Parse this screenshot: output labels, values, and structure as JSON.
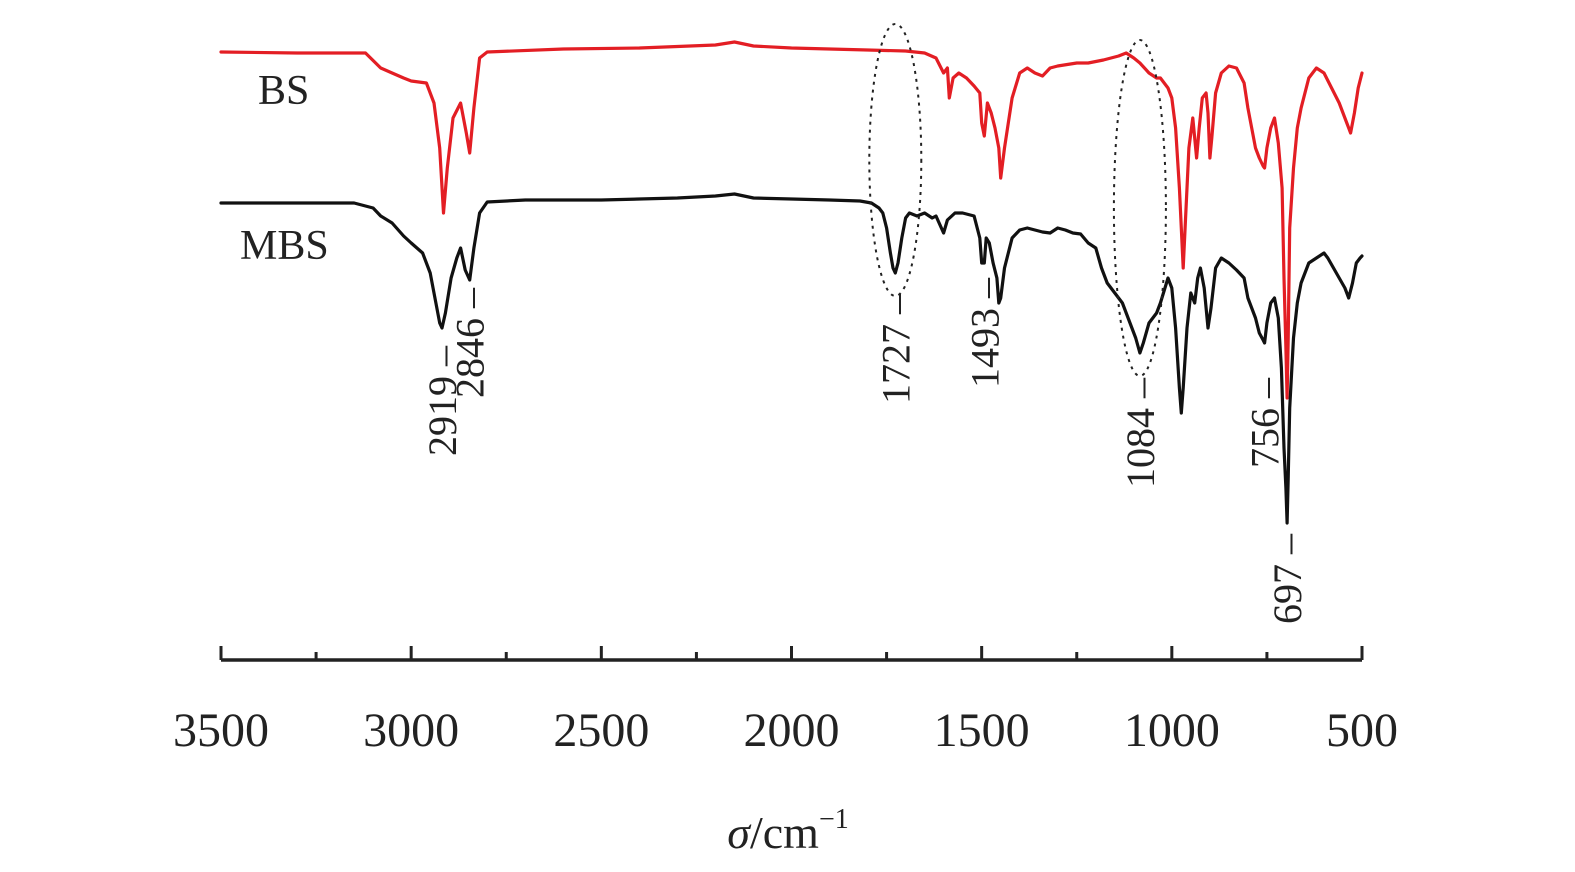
{
  "chart_data": {
    "type": "line",
    "title": "",
    "xlabel_symbol": "σ",
    "xlabel_unit": "/cm",
    "xlabel_exp": "−1",
    "xlim": [
      3500,
      500
    ],
    "x_reversed": true,
    "xticks": [
      3500,
      3000,
      2500,
      2000,
      1500,
      1000,
      500
    ],
    "grid": false,
    "legend": "none",
    "series": [
      {
        "name": "BS",
        "color": "#e31e24",
        "points": [
          [
            3500,
            4
          ],
          [
            3300,
            5
          ],
          [
            3120,
            5
          ],
          [
            3080,
            20
          ],
          [
            3050,
            25
          ],
          [
            3020,
            30
          ],
          [
            3000,
            33
          ],
          [
            2960,
            35
          ],
          [
            2940,
            55
          ],
          [
            2925,
            100
          ],
          [
            2915,
            165
          ],
          [
            2905,
            120
          ],
          [
            2890,
            70
          ],
          [
            2870,
            55
          ],
          [
            2855,
            85
          ],
          [
            2846,
            105
          ],
          [
            2835,
            60
          ],
          [
            2820,
            10
          ],
          [
            2800,
            4
          ],
          [
            2600,
            1
          ],
          [
            2400,
            0
          ],
          [
            2200,
            -3
          ],
          [
            2150,
            -6
          ],
          [
            2100,
            -2
          ],
          [
            2000,
            0
          ],
          [
            1900,
            1
          ],
          [
            1800,
            2
          ],
          [
            1700,
            3
          ],
          [
            1650,
            5
          ],
          [
            1620,
            10
          ],
          [
            1600,
            25
          ],
          [
            1590,
            20
          ],
          [
            1585,
            50
          ],
          [
            1575,
            30
          ],
          [
            1560,
            25
          ],
          [
            1540,
            30
          ],
          [
            1520,
            38
          ],
          [
            1505,
            45
          ],
          [
            1500,
            75
          ],
          [
            1493,
            88
          ],
          [
            1485,
            55
          ],
          [
            1475,
            65
          ],
          [
            1465,
            80
          ],
          [
            1455,
            100
          ],
          [
            1450,
            130
          ],
          [
            1440,
            100
          ],
          [
            1420,
            50
          ],
          [
            1400,
            25
          ],
          [
            1380,
            20
          ],
          [
            1360,
            25
          ],
          [
            1340,
            28
          ],
          [
            1320,
            20
          ],
          [
            1300,
            18
          ],
          [
            1250,
            15
          ],
          [
            1220,
            15
          ],
          [
            1180,
            12
          ],
          [
            1140,
            8
          ],
          [
            1120,
            5
          ],
          [
            1100,
            10
          ],
          [
            1084,
            15
          ],
          [
            1060,
            25
          ],
          [
            1040,
            30
          ],
          [
            1030,
            30
          ],
          [
            1010,
            40
          ],
          [
            1000,
            50
          ],
          [
            990,
            80
          ],
          [
            980,
            140
          ],
          [
            975,
            180
          ],
          [
            970,
            220
          ],
          [
            965,
            180
          ],
          [
            955,
            100
          ],
          [
            945,
            70
          ],
          [
            935,
            110
          ],
          [
            928,
            80
          ],
          [
            920,
            50
          ],
          [
            910,
            45
          ],
          [
            905,
            65
          ],
          [
            900,
            110
          ],
          [
            895,
            90
          ],
          [
            885,
            45
          ],
          [
            870,
            25
          ],
          [
            850,
            18
          ],
          [
            830,
            20
          ],
          [
            810,
            35
          ],
          [
            800,
            60
          ],
          [
            790,
            80
          ],
          [
            780,
            100
          ],
          [
            770,
            110
          ],
          [
            760,
            118
          ],
          [
            756,
            120
          ],
          [
            750,
            100
          ],
          [
            740,
            80
          ],
          [
            730,
            70
          ],
          [
            720,
            95
          ],
          [
            710,
            140
          ],
          [
            705,
            230
          ],
          [
            700,
            300
          ],
          [
            697,
            350
          ],
          [
            694,
            290
          ],
          [
            690,
            180
          ],
          [
            680,
            120
          ],
          [
            670,
            80
          ],
          [
            660,
            60
          ],
          [
            640,
            30
          ],
          [
            620,
            20
          ],
          [
            600,
            25
          ],
          [
            580,
            40
          ],
          [
            560,
            55
          ],
          [
            540,
            75
          ],
          [
            530,
            85
          ],
          [
            520,
            65
          ],
          [
            510,
            40
          ],
          [
            500,
            25
          ]
        ]
      },
      {
        "name": "MBS",
        "color": "#111111",
        "points": [
          [
            3500,
            -5
          ],
          [
            3300,
            -5
          ],
          [
            3150,
            -5
          ],
          [
            3100,
            0
          ],
          [
            3080,
            8
          ],
          [
            3050,
            15
          ],
          [
            3020,
            28
          ],
          [
            3000,
            35
          ],
          [
            2970,
            45
          ],
          [
            2950,
            65
          ],
          [
            2935,
            95
          ],
          [
            2925,
            115
          ],
          [
            2919,
            120
          ],
          [
            2910,
            105
          ],
          [
            2895,
            70
          ],
          [
            2880,
            50
          ],
          [
            2870,
            40
          ],
          [
            2858,
            62
          ],
          [
            2846,
            72
          ],
          [
            2835,
            40
          ],
          [
            2820,
            5
          ],
          [
            2800,
            -6
          ],
          [
            2700,
            -8
          ],
          [
            2500,
            -8
          ],
          [
            2400,
            -9
          ],
          [
            2300,
            -10
          ],
          [
            2200,
            -12
          ],
          [
            2150,
            -14
          ],
          [
            2100,
            -10
          ],
          [
            2000,
            -9
          ],
          [
            1900,
            -8
          ],
          [
            1820,
            -7
          ],
          [
            1790,
            -5
          ],
          [
            1770,
            0
          ],
          [
            1760,
            5
          ],
          [
            1750,
            20
          ],
          [
            1740,
            45
          ],
          [
            1733,
            60
          ],
          [
            1727,
            65
          ],
          [
            1720,
            55
          ],
          [
            1710,
            30
          ],
          [
            1700,
            10
          ],
          [
            1690,
            5
          ],
          [
            1670,
            8
          ],
          [
            1650,
            5
          ],
          [
            1630,
            10
          ],
          [
            1620,
            8
          ],
          [
            1600,
            25
          ],
          [
            1590,
            12
          ],
          [
            1570,
            5
          ],
          [
            1550,
            5
          ],
          [
            1520,
            8
          ],
          [
            1505,
            30
          ],
          [
            1500,
            55
          ],
          [
            1493,
            55
          ],
          [
            1488,
            30
          ],
          [
            1480,
            35
          ],
          [
            1470,
            55
          ],
          [
            1460,
            70
          ],
          [
            1455,
            95
          ],
          [
            1450,
            90
          ],
          [
            1440,
            60
          ],
          [
            1420,
            30
          ],
          [
            1400,
            22
          ],
          [
            1380,
            20
          ],
          [
            1360,
            22
          ],
          [
            1340,
            24
          ],
          [
            1320,
            25
          ],
          [
            1300,
            20
          ],
          [
            1280,
            22
          ],
          [
            1260,
            25
          ],
          [
            1240,
            26
          ],
          [
            1220,
            35
          ],
          [
            1200,
            40
          ],
          [
            1185,
            60
          ],
          [
            1170,
            75
          ],
          [
            1150,
            85
          ],
          [
            1130,
            95
          ],
          [
            1110,
            115
          ],
          [
            1095,
            130
          ],
          [
            1084,
            145
          ],
          [
            1075,
            135
          ],
          [
            1060,
            115
          ],
          [
            1040,
            105
          ],
          [
            1030,
            95
          ],
          [
            1010,
            70
          ],
          [
            1000,
            80
          ],
          [
            990,
            120
          ],
          [
            980,
            180
          ],
          [
            975,
            205
          ],
          [
            970,
            180
          ],
          [
            960,
            120
          ],
          [
            950,
            85
          ],
          [
            940,
            95
          ],
          [
            932,
            70
          ],
          [
            925,
            60
          ],
          [
            915,
            80
          ],
          [
            905,
            120
          ],
          [
            897,
            100
          ],
          [
            885,
            60
          ],
          [
            870,
            50
          ],
          [
            850,
            55
          ],
          [
            830,
            62
          ],
          [
            810,
            70
          ],
          [
            800,
            90
          ],
          [
            790,
            100
          ],
          [
            780,
            110
          ],
          [
            770,
            125
          ],
          [
            760,
            132
          ],
          [
            756,
            135
          ],
          [
            750,
            115
          ],
          [
            740,
            95
          ],
          [
            730,
            90
          ],
          [
            720,
            110
          ],
          [
            712,
            160
          ],
          [
            705,
            240
          ],
          [
            700,
            280
          ],
          [
            697,
            315
          ],
          [
            694,
            270
          ],
          [
            690,
            200
          ],
          [
            680,
            130
          ],
          [
            670,
            95
          ],
          [
            660,
            75
          ],
          [
            640,
            55
          ],
          [
            620,
            50
          ],
          [
            600,
            45
          ],
          [
            590,
            50
          ],
          [
            575,
            60
          ],
          [
            560,
            70
          ],
          [
            545,
            80
          ],
          [
            535,
            90
          ],
          [
            525,
            75
          ],
          [
            515,
            55
          ],
          [
            505,
            50
          ],
          [
            500,
            48
          ]
        ]
      }
    ],
    "peak_labels": [
      {
        "text": "2919",
        "x": 2919
      },
      {
        "text": "2846",
        "x": 2846
      },
      {
        "text": "1727",
        "x": 1727
      },
      {
        "text": "1493",
        "x": 1493
      },
      {
        "text": "1084",
        "x": 1084
      },
      {
        "text": "756",
        "x": 756
      },
      {
        "text": "697",
        "x": 697
      }
    ],
    "highlighted_regions": [
      1727,
      1084
    ]
  }
}
